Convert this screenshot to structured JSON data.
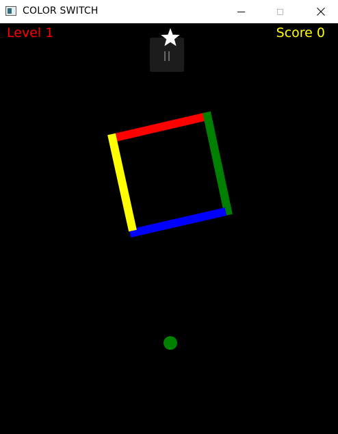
{
  "window": {
    "title": "COLOR SWITCH",
    "icons": {
      "app": "app-icon",
      "minimize": "minimize-icon",
      "maximize": "maximize-icon",
      "close": "close-icon"
    }
  },
  "hud": {
    "level_text": "Level 1",
    "score_text": "Score 0",
    "level_color": "#ff0000",
    "score_color": "#ffff00",
    "star_icon": "star-icon",
    "pause_icon": "pause-icon"
  },
  "game": {
    "obstacle": {
      "shape": "rotating-square",
      "segment_colors": {
        "top": "#ff0000",
        "right": "#008000",
        "bottom": "#0000ff",
        "left": "#ffff00"
      }
    },
    "ball": {
      "color": "#008000"
    }
  }
}
